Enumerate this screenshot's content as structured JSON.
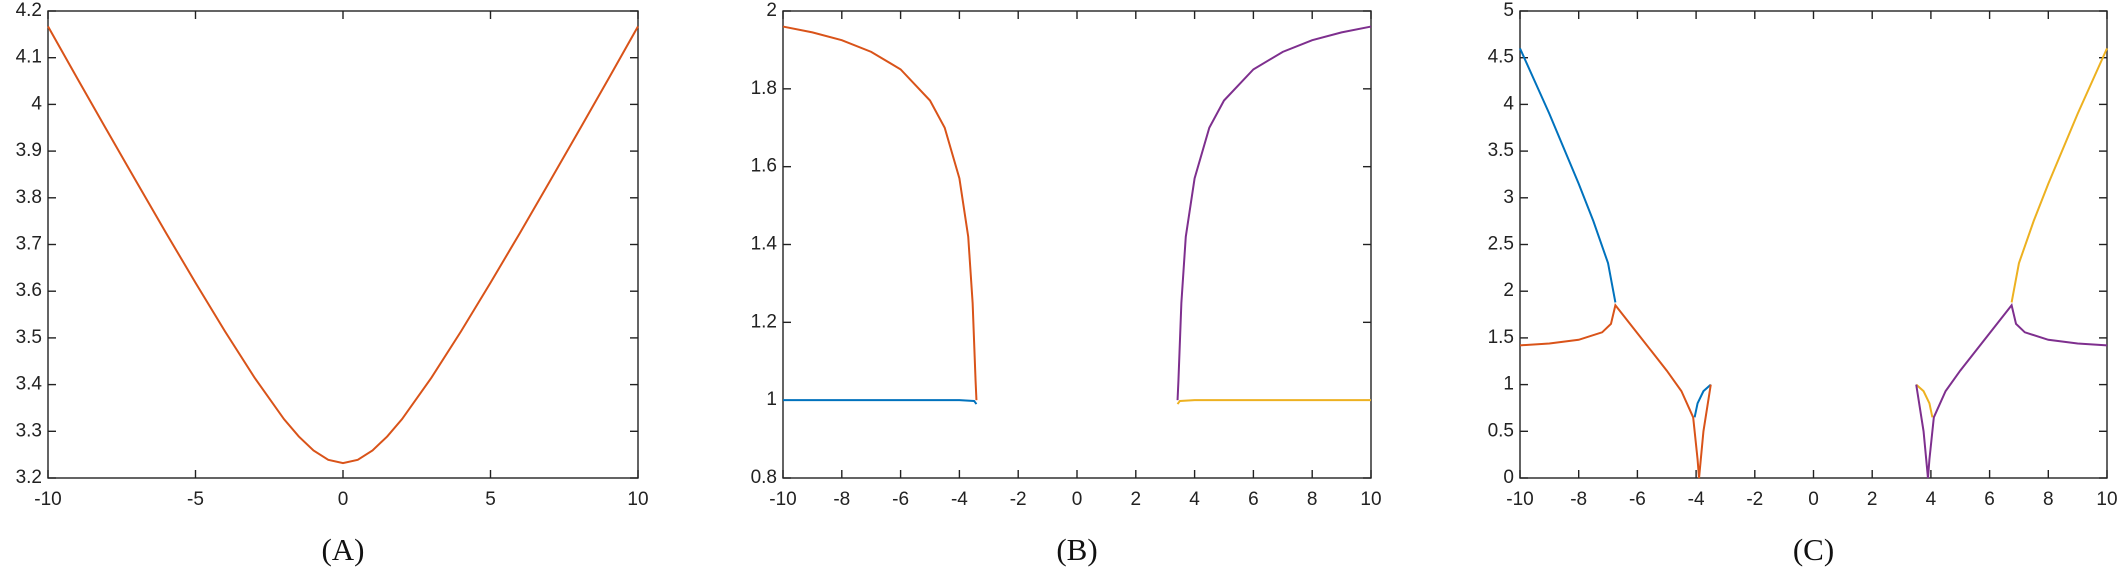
{
  "chart_data": [
    {
      "type": "line",
      "caption": "(A)",
      "xlim": [
        -10,
        10
      ],
      "xticks": [
        -10,
        -5,
        0,
        5,
        10
      ],
      "ylim": [
        3.2,
        4.2
      ],
      "yticks": [
        3.2,
        3.3,
        3.4,
        3.5,
        3.6,
        3.7,
        3.8,
        3.9,
        4,
        4.1,
        4.2
      ],
      "series": [
        {
          "color": "#d95319",
          "x": [
            -10,
            -9,
            -8,
            -7,
            -6,
            -5,
            -4,
            -3,
            -2,
            -1.5,
            -1,
            -0.5,
            0,
            0.5,
            1,
            1.5,
            2,
            3,
            4,
            5,
            6,
            7,
            8,
            9,
            10
          ],
          "values": [
            4.167,
            4.055,
            3.944,
            3.834,
            3.725,
            3.618,
            3.514,
            3.415,
            3.326,
            3.289,
            3.259,
            3.239,
            3.232,
            3.239,
            3.259,
            3.289,
            3.326,
            3.415,
            3.514,
            3.618,
            3.725,
            3.834,
            3.944,
            4.055,
            4.167
          ]
        }
      ]
    },
    {
      "type": "line",
      "caption": "(B)",
      "xlim": [
        -10,
        10
      ],
      "xticks": [
        -10,
        -8,
        -6,
        -4,
        -2,
        0,
        2,
        4,
        6,
        8,
        10
      ],
      "ylim": [
        0.8,
        2
      ],
      "yticks": [
        0.8,
        1,
        1.2,
        1.4,
        1.6,
        1.8,
        2
      ],
      "series": [
        {
          "color": "#0072bd",
          "x": [
            -10,
            -4,
            -3.5,
            -3.42
          ],
          "values": [
            1.0,
            1.0,
            0.998,
            0.99
          ]
        },
        {
          "color": "#d95319",
          "x": [
            -10,
            -9,
            -8,
            -7,
            -6,
            -5,
            -4.5,
            -4,
            -3.7,
            -3.55,
            -3.45,
            -3.42
          ],
          "values": [
            1.96,
            1.945,
            1.925,
            1.895,
            1.85,
            1.77,
            1.7,
            1.57,
            1.42,
            1.25,
            1.05,
            1.0
          ]
        },
        {
          "color": "#7e2f8e",
          "x": [
            3.42,
            3.45,
            3.55,
            3.7,
            4,
            4.5,
            5,
            6,
            7,
            8,
            9,
            10
          ],
          "values": [
            1.0,
            1.05,
            1.25,
            1.42,
            1.57,
            1.7,
            1.77,
            1.85,
            1.895,
            1.925,
            1.945,
            1.96
          ]
        },
        {
          "color": "#edb120",
          "x": [
            3.42,
            3.5,
            4,
            10
          ],
          "values": [
            0.99,
            0.998,
            1.0,
            1.0
          ]
        }
      ]
    },
    {
      "type": "line",
      "caption": "(C)",
      "xlim": [
        -10,
        10
      ],
      "xticks": [
        -10,
        -8,
        -6,
        -4,
        -2,
        0,
        2,
        4,
        6,
        8,
        10
      ],
      "ylim": [
        0,
        5
      ],
      "yticks": [
        0,
        0.5,
        1,
        1.5,
        2,
        2.5,
        3,
        3.5,
        4,
        4.5,
        5
      ],
      "series": [
        {
          "color": "#0072bd",
          "x": [
            -10,
            -9,
            -8,
            -7.5,
            -7,
            -6.75,
            null,
            -4.05,
            -3.95,
            -3.75,
            -3.5
          ],
          "values": [
            4.6,
            3.9,
            3.15,
            2.75,
            2.3,
            1.88,
            null,
            0.65,
            0.8,
            0.93,
            1.0
          ]
        },
        {
          "color": "#d95319",
          "x": [
            -10,
            -9,
            -8,
            -7.2,
            -6.9,
            -6.75,
            -6,
            -5,
            -4.5,
            -4.1,
            -3.95,
            -3.9,
            -3.75,
            -3.5
          ],
          "values": [
            1.42,
            1.44,
            1.48,
            1.56,
            1.65,
            1.85,
            1.55,
            1.15,
            0.93,
            0.65,
            0.2,
            0,
            0.5,
            1.0
          ]
        },
        {
          "color": "#edb120",
          "x": [
            3.5,
            3.75,
            3.95,
            4.05,
            null,
            6.75,
            7,
            7.5,
            8,
            9,
            10
          ],
          "values": [
            1.0,
            0.93,
            0.8,
            0.65,
            null,
            1.88,
            2.3,
            2.75,
            3.15,
            3.9,
            4.6
          ]
        },
        {
          "color": "#7e2f8e",
          "x": [
            3.5,
            3.75,
            3.9,
            3.95,
            4.1,
            4.5,
            5,
            6,
            6.75,
            6.9,
            7.2,
            8,
            9,
            10
          ],
          "values": [
            1.0,
            0.5,
            0,
            0.2,
            0.65,
            0.93,
            1.15,
            1.55,
            1.85,
            1.65,
            1.56,
            1.48,
            1.44,
            1.42
          ]
        }
      ]
    }
  ]
}
